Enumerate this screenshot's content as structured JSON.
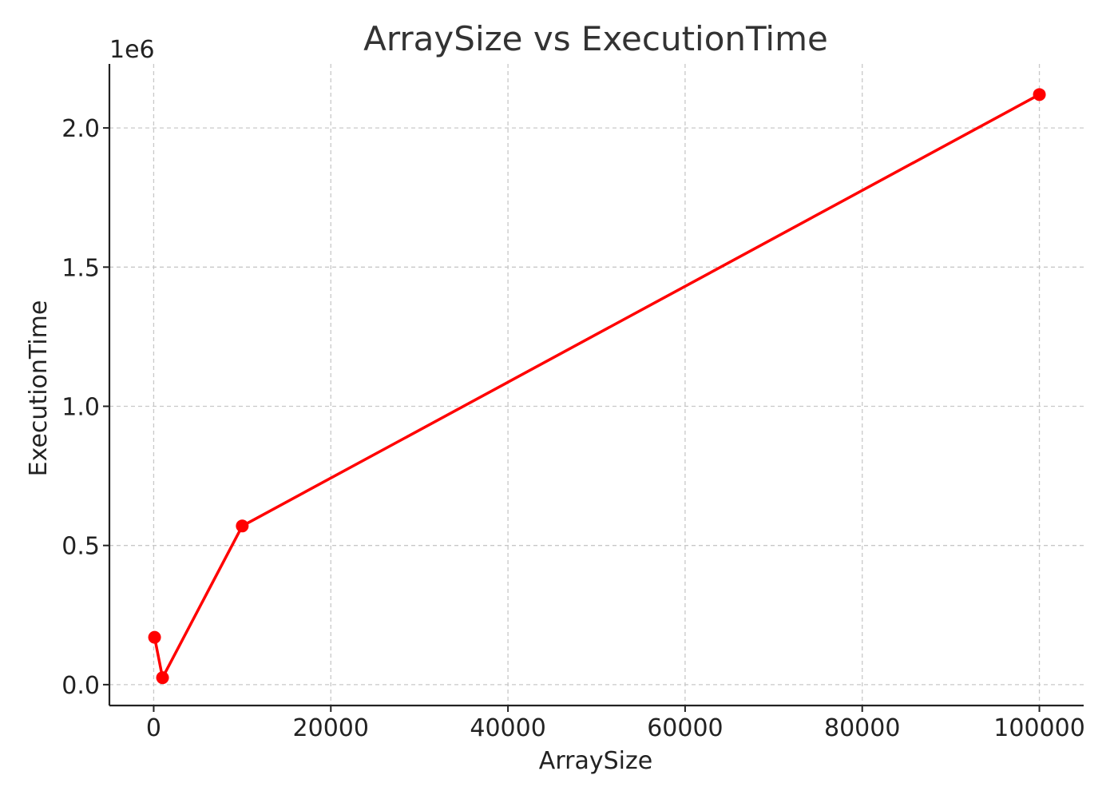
{
  "chart_data": {
    "type": "line",
    "title": "ArraySize vs ExecutionTime",
    "xlabel": "ArraySize",
    "ylabel": "ExecutionTime",
    "y_offset_label": "1e6",
    "y_scale": 1000000,
    "xlim": [
      -5000,
      105000
    ],
    "ylim": [
      -75000,
      2230000
    ],
    "x_ticks": [
      0,
      20000,
      40000,
      60000,
      80000,
      100000
    ],
    "x_tick_labels": [
      "0",
      "20000",
      "40000",
      "60000",
      "80000",
      "100000"
    ],
    "y_ticks": [
      0,
      500000,
      1000000,
      1500000,
      2000000
    ],
    "y_tick_labels": [
      "0.0",
      "0.5",
      "1.0",
      "1.5",
      "2.0"
    ],
    "grid": true,
    "series": [
      {
        "color": "#ff0000",
        "marker": "circle",
        "x": [
          100,
          1000,
          10000,
          100000
        ],
        "y": [
          170000,
          25000,
          570000,
          2120000
        ]
      }
    ]
  }
}
